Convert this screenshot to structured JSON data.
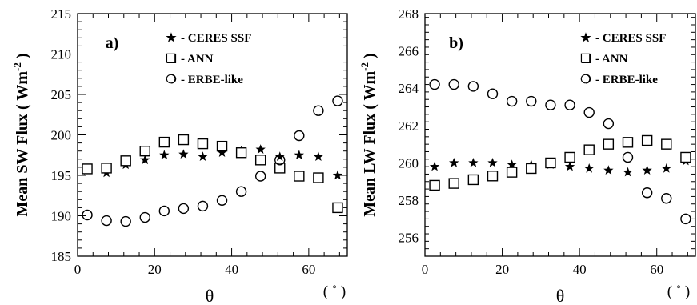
{
  "chart_data": [
    {
      "type": "scatter",
      "panel_label": "a)",
      "ylabel": "Mean SW Flux ( Wm",
      "ylabel_exp": "-2",
      "ylabel_close": " )",
      "xlabel": "θ",
      "x_unit": "( ˚ )",
      "xlim": [
        0,
        70
      ],
      "ylim": [
        185,
        215
      ],
      "xticks": [
        "0",
        "20",
        "40",
        "60"
      ],
      "yticks": [
        "185",
        "190",
        "195",
        "200",
        "205",
        "210",
        "215"
      ],
      "legend": [
        {
          "symbol": "★",
          "label": "- CERES SSF"
        },
        {
          "symbol": "❑",
          "label": "- ANN"
        },
        {
          "symbol": "❍",
          "label": "- ERBE-like"
        }
      ],
      "x": [
        2.5,
        7.5,
        12.5,
        17.5,
        22.5,
        27.5,
        32.5,
        37.5,
        42.5,
        47.5,
        52.5,
        57.5,
        62.5,
        67.5
      ],
      "series": [
        {
          "name": "CERES SSF",
          "marker": "star",
          "values": [
            195.6,
            195.3,
            196.3,
            196.9,
            197.5,
            197.6,
            197.3,
            197.8,
            198.0,
            198.2,
            197.3,
            197.5,
            197.3,
            195.0
          ]
        },
        {
          "name": "ANN",
          "marker": "square",
          "values": [
            195.8,
            195.9,
            196.8,
            198.0,
            199.1,
            199.4,
            198.9,
            198.6,
            197.8,
            196.9,
            195.9,
            194.9,
            194.7,
            191.0
          ]
        },
        {
          "name": "ERBE-like",
          "marker": "circle",
          "values": [
            190.1,
            189.4,
            189.3,
            189.8,
            190.6,
            190.9,
            191.2,
            191.9,
            193.0,
            194.9,
            196.9,
            199.9,
            203.0,
            204.2
          ]
        }
      ]
    },
    {
      "type": "scatter",
      "panel_label": "b)",
      "ylabel": "Mean LW Flux ( Wm",
      "ylabel_exp": "-2",
      "ylabel_close": " )",
      "xlabel": "θ",
      "x_unit": "( ˚ )",
      "xlim": [
        0,
        70
      ],
      "ylim": [
        255,
        268
      ],
      "xticks": [
        "0",
        "20",
        "40",
        "60"
      ],
      "yticks": [
        "256",
        "258",
        "260",
        "262",
        "264",
        "266",
        "268"
      ],
      "legend": [
        {
          "symbol": "★",
          "label": "- CERES SSF"
        },
        {
          "symbol": "❑",
          "label": "- ANN"
        },
        {
          "symbol": "❍",
          "label": "- ERBE-like"
        }
      ],
      "x": [
        2.5,
        7.5,
        12.5,
        17.5,
        22.5,
        27.5,
        32.5,
        37.5,
        42.5,
        47.5,
        52.5,
        57.5,
        62.5,
        67.5
      ],
      "series": [
        {
          "name": "CERES SSF",
          "marker": "star",
          "values": [
            259.8,
            260.0,
            260.0,
            260.0,
            259.9,
            259.9,
            259.9,
            259.8,
            259.7,
            259.6,
            259.5,
            259.6,
            259.7,
            260.1
          ]
        },
        {
          "name": "ANN",
          "marker": "square",
          "values": [
            258.8,
            258.9,
            259.1,
            259.3,
            259.5,
            259.7,
            260.0,
            260.3,
            260.7,
            261.0,
            261.1,
            261.2,
            261.0,
            260.3
          ]
        },
        {
          "name": "ERBE-like",
          "marker": "circle",
          "values": [
            264.2,
            264.2,
            264.1,
            263.7,
            263.3,
            263.3,
            263.1,
            263.1,
            262.7,
            262.1,
            260.3,
            258.4,
            258.1,
            257.0
          ]
        }
      ]
    }
  ]
}
